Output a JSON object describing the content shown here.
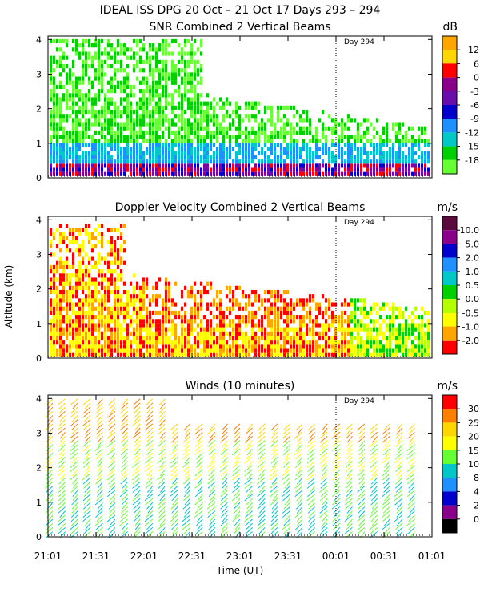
{
  "figure": {
    "title": "IDEAL ISS DPG  20 Oct – 21 Oct 17 Days 293 – 294",
    "xlabel": "Time (UT)",
    "ylabel": "Altitude (km)",
    "x_ticks": [
      "21:01",
      "21:31",
      "22:01",
      "22:31",
      "23:01",
      "23:31",
      "00:01",
      "00:31",
      "01:01"
    ],
    "day_marker": "Day 294"
  },
  "chart_data": [
    {
      "type": "heatmap",
      "title": "SNR Combined 2 Vertical Beams",
      "unit": "dB",
      "xlabel": "Time (UT)",
      "ylabel": "Altitude (km)",
      "x_ticks": [
        "21:01",
        "21:31",
        "22:01",
        "22:31",
        "23:01",
        "23:31",
        "00:01",
        "00:31",
        "01:01"
      ],
      "y_ticks": [
        "0",
        "1",
        "2",
        "3",
        "4"
      ],
      "ylim": [
        0,
        4.1
      ],
      "day_marker": {
        "label": "Day 294",
        "time": "00:01"
      },
      "colorbar": {
        "labels": [
          "12",
          "6",
          "0",
          "-3",
          "-6",
          "-9",
          "-12",
          "-15",
          "-18"
        ],
        "colors": [
          "#ffa500",
          "#ffd700",
          "#ff0000",
          "#8b008b",
          "#6a0dad",
          "#0000cd",
          "#1e90ff",
          "#00c8c8",
          "#00d000",
          "#66ff33"
        ]
      }
    },
    {
      "type": "heatmap",
      "title": "Doppler Velocity Combined 2 Vertical Beams",
      "unit": "m/s",
      "xlabel": "Time (UT)",
      "ylabel": "Altitude (km)",
      "x_ticks": [
        "21:01",
        "21:31",
        "22:01",
        "22:31",
        "23:01",
        "23:31",
        "00:01",
        "00:31",
        "01:01"
      ],
      "y_ticks": [
        "0",
        "1",
        "2",
        "3",
        "4"
      ],
      "ylim": [
        0,
        4.1
      ],
      "day_marker": {
        "label": "Day 294",
        "time": "00:01"
      },
      "colorbar": {
        "labels": [
          "10.0",
          "5.0",
          "2.0",
          "1.0",
          "0.5",
          "0.0",
          "-0.5",
          "-1.0",
          "-2.0"
        ],
        "colors": [
          "#5a0a3c",
          "#8b008b",
          "#0000cd",
          "#1e90ff",
          "#00c8c8",
          "#00d000",
          "#b4ff00",
          "#ffff00",
          "#ffa500",
          "#ff0000"
        ]
      }
    },
    {
      "type": "wind-barbs",
      "title": "Winds (10 minutes)",
      "unit": "m/s",
      "xlabel": "Time (UT)",
      "ylabel": "Altitude (km)",
      "x_ticks": [
        "21:01",
        "21:31",
        "22:01",
        "22:31",
        "23:01",
        "23:31",
        "00:01",
        "00:31",
        "01:01"
      ],
      "y_ticks": [
        "0",
        "1",
        "2",
        "3",
        "4"
      ],
      "ylim": [
        0,
        4.1
      ],
      "day_marker": {
        "label": "Day 294",
        "time": "00:01"
      },
      "colorbar": {
        "labels": [
          "30",
          "25",
          "20",
          "15",
          "10",
          "8",
          "4",
          "2",
          "0"
        ],
        "colors": [
          "#ff0000",
          "#ff7f00",
          "#ffd700",
          "#ffff00",
          "#66ff33",
          "#00c8c8",
          "#1e90ff",
          "#0000cd",
          "#8b008b",
          "#000000"
        ]
      }
    }
  ]
}
